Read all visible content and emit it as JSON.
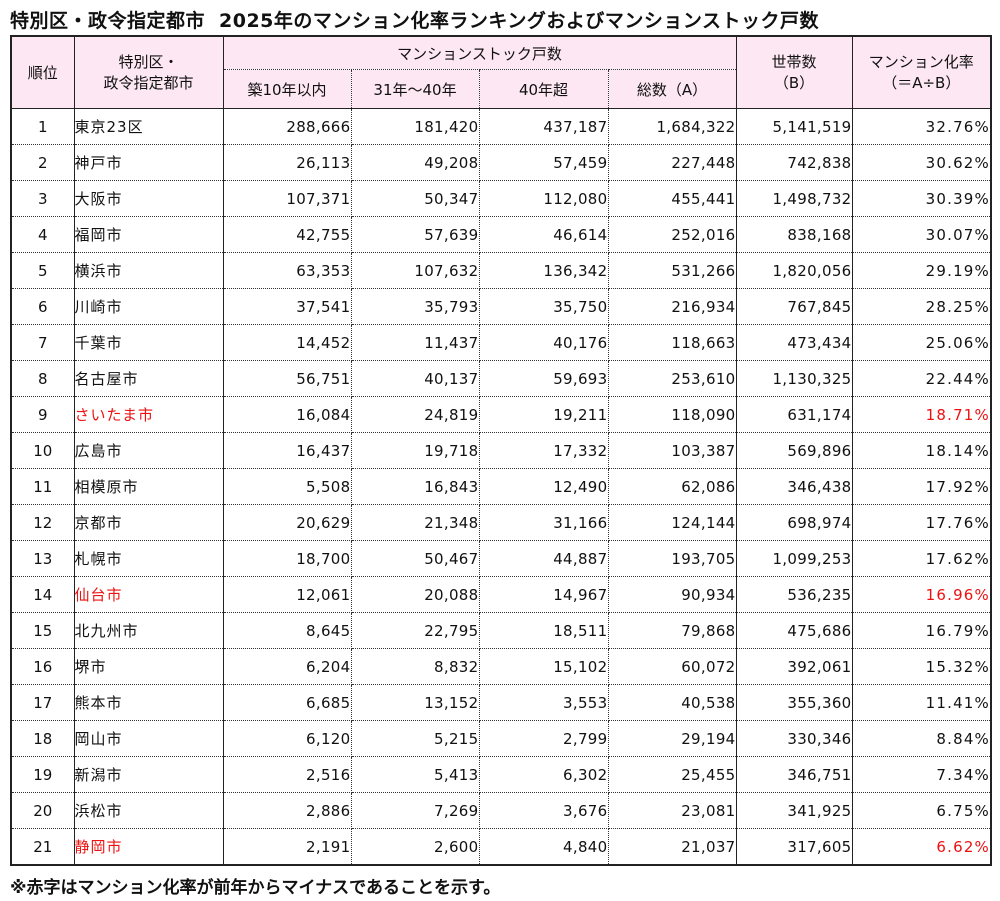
{
  "title": {
    "part1": "特別区・政令指定都市",
    "part2": "2025年のマンション化率ランキングおよびマンションストック戸数"
  },
  "header": {
    "rank": "順位",
    "city_line1": "特別区・",
    "city_line2": "政令指定都市",
    "stock_group": "マンションストック戸数",
    "stock_cols": [
      "築10年以内",
      "31年～40年",
      "40年超",
      "総数（A）"
    ],
    "households_line1": "世帯数",
    "households_line2": "（B）",
    "rate_line1": "マンション化率",
    "rate_line2": "（＝A÷B）"
  },
  "highlight_color": "#ee1111",
  "header_bg": "#fde7f2",
  "rows": [
    {
      "rank": "1",
      "city": "東京23区",
      "within10": "288,666",
      "y31_40": "181,420",
      "over40": "437,187",
      "total": "1,684,322",
      "households": "5,141,519",
      "rate": "32.76%",
      "red": false
    },
    {
      "rank": "2",
      "city": "神戸市",
      "within10": "26,113",
      "y31_40": "49,208",
      "over40": "57,459",
      "total": "227,448",
      "households": "742,838",
      "rate": "30.62%",
      "red": false
    },
    {
      "rank": "3",
      "city": "大阪市",
      "within10": "107,371",
      "y31_40": "50,347",
      "over40": "112,080",
      "total": "455,441",
      "households": "1,498,732",
      "rate": "30.39%",
      "red": false
    },
    {
      "rank": "4",
      "city": "福岡市",
      "within10": "42,755",
      "y31_40": "57,639",
      "over40": "46,614",
      "total": "252,016",
      "households": "838,168",
      "rate": "30.07%",
      "red": false
    },
    {
      "rank": "5",
      "city": "横浜市",
      "within10": "63,353",
      "y31_40": "107,632",
      "over40": "136,342",
      "total": "531,266",
      "households": "1,820,056",
      "rate": "29.19%",
      "red": false
    },
    {
      "rank": "6",
      "city": "川崎市",
      "within10": "37,541",
      "y31_40": "35,793",
      "over40": "35,750",
      "total": "216,934",
      "households": "767,845",
      "rate": "28.25%",
      "red": false
    },
    {
      "rank": "7",
      "city": "千葉市",
      "within10": "14,452",
      "y31_40": "11,437",
      "over40": "40,176",
      "total": "118,663",
      "households": "473,434",
      "rate": "25.06%",
      "red": false
    },
    {
      "rank": "8",
      "city": "名古屋市",
      "within10": "56,751",
      "y31_40": "40,137",
      "over40": "59,693",
      "total": "253,610",
      "households": "1,130,325",
      "rate": "22.44%",
      "red": false
    },
    {
      "rank": "9",
      "city": "さいたま市",
      "within10": "16,084",
      "y31_40": "24,819",
      "over40": "19,211",
      "total": "118,090",
      "households": "631,174",
      "rate": "18.71%",
      "red": true
    },
    {
      "rank": "10",
      "city": "広島市",
      "within10": "16,437",
      "y31_40": "19,718",
      "over40": "17,332",
      "total": "103,387",
      "households": "569,896",
      "rate": "18.14%",
      "red": false
    },
    {
      "rank": "11",
      "city": "相模原市",
      "within10": "5,508",
      "y31_40": "16,843",
      "over40": "12,490",
      "total": "62,086",
      "households": "346,438",
      "rate": "17.92%",
      "red": false
    },
    {
      "rank": "12",
      "city": "京都市",
      "within10": "20,629",
      "y31_40": "21,348",
      "over40": "31,166",
      "total": "124,144",
      "households": "698,974",
      "rate": "17.76%",
      "red": false
    },
    {
      "rank": "13",
      "city": "札幌市",
      "within10": "18,700",
      "y31_40": "50,467",
      "over40": "44,887",
      "total": "193,705",
      "households": "1,099,253",
      "rate": "17.62%",
      "red": false
    },
    {
      "rank": "14",
      "city": "仙台市",
      "within10": "12,061",
      "y31_40": "20,088",
      "over40": "14,967",
      "total": "90,934",
      "households": "536,235",
      "rate": "16.96%",
      "red": true
    },
    {
      "rank": "15",
      "city": "北九州市",
      "within10": "8,645",
      "y31_40": "22,795",
      "over40": "18,511",
      "total": "79,868",
      "households": "475,686",
      "rate": "16.79%",
      "red": false
    },
    {
      "rank": "16",
      "city": "堺市",
      "within10": "6,204",
      "y31_40": "8,832",
      "over40": "15,102",
      "total": "60,072",
      "households": "392,061",
      "rate": "15.32%",
      "red": false
    },
    {
      "rank": "17",
      "city": "熊本市",
      "within10": "6,685",
      "y31_40": "13,152",
      "over40": "3,553",
      "total": "40,538",
      "households": "355,360",
      "rate": "11.41%",
      "red": false
    },
    {
      "rank": "18",
      "city": "岡山市",
      "within10": "6,120",
      "y31_40": "5,215",
      "over40": "2,799",
      "total": "29,194",
      "households": "330,346",
      "rate": "8.84%",
      "red": false
    },
    {
      "rank": "19",
      "city": "新潟市",
      "within10": "2,516",
      "y31_40": "5,413",
      "over40": "6,302",
      "total": "25,455",
      "households": "346,751",
      "rate": "7.34%",
      "red": false
    },
    {
      "rank": "20",
      "city": "浜松市",
      "within10": "2,886",
      "y31_40": "7,269",
      "over40": "3,676",
      "total": "23,081",
      "households": "341,925",
      "rate": "6.75%",
      "red": false
    },
    {
      "rank": "21",
      "city": "静岡市",
      "within10": "2,191",
      "y31_40": "2,600",
      "over40": "4,840",
      "total": "21,037",
      "households": "317,605",
      "rate": "6.62%",
      "red": true
    }
  ],
  "note": "※赤字はマンション化率が前年からマイナスであることを示す。"
}
